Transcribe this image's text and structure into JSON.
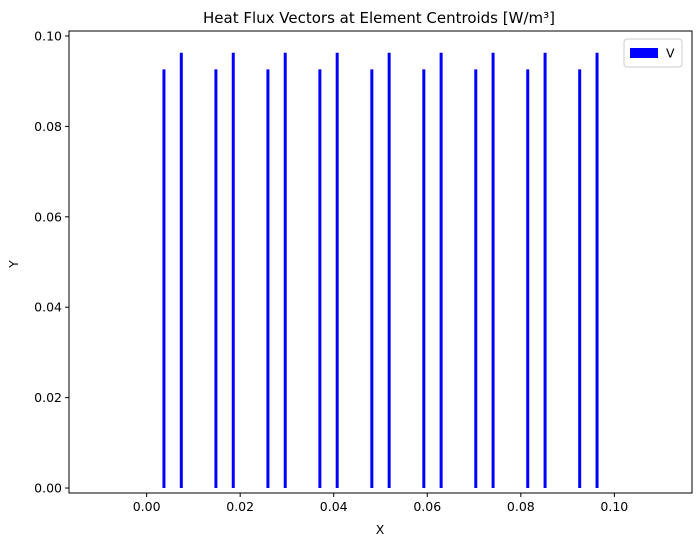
{
  "chart_data": {
    "type": "quiver",
    "title": "Heat Flux Vectors at Element Centroids [W/m³]",
    "xlabel": "X",
    "ylabel": "Y",
    "xlim": [
      -0.0166,
      0.1166
    ],
    "ylim": [
      -0.0011,
      0.1011
    ],
    "xticks": [
      "0.00",
      "0.02",
      "0.04",
      "0.06",
      "0.08",
      "0.10"
    ],
    "yticks": [
      "0.00",
      "0.02",
      "0.04",
      "0.06",
      "0.08",
      "0.10"
    ],
    "xtick_values": [
      0.0,
      0.02,
      0.04,
      0.06,
      0.08,
      0.1
    ],
    "ytick_values": [
      0.0,
      0.02,
      0.04,
      0.06,
      0.08,
      0.1
    ],
    "legend": {
      "entries": [
        "V"
      ],
      "placement": "upper right",
      "color": "#0000ff"
    },
    "grid": false,
    "color": "#0000ff",
    "series": [
      {
        "name": "V",
        "x": [
          0.0037,
          0.00741,
          0.01481,
          0.01852,
          0.02593,
          0.02963,
          0.03704,
          0.04074,
          0.04815,
          0.05185,
          0.05926,
          0.06296,
          0.07037,
          0.07407,
          0.08148,
          0.08519,
          0.09259,
          0.0963
        ],
        "y_top": [
          0.0926,
          0.0963,
          0.0926,
          0.0963,
          0.0926,
          0.0963,
          0.0926,
          0.0963,
          0.0926,
          0.0963,
          0.0926,
          0.0963,
          0.0926,
          0.0963,
          0.0926,
          0.0963,
          0.0926,
          0.0963
        ],
        "y_bottom": 0.0
      }
    ]
  }
}
